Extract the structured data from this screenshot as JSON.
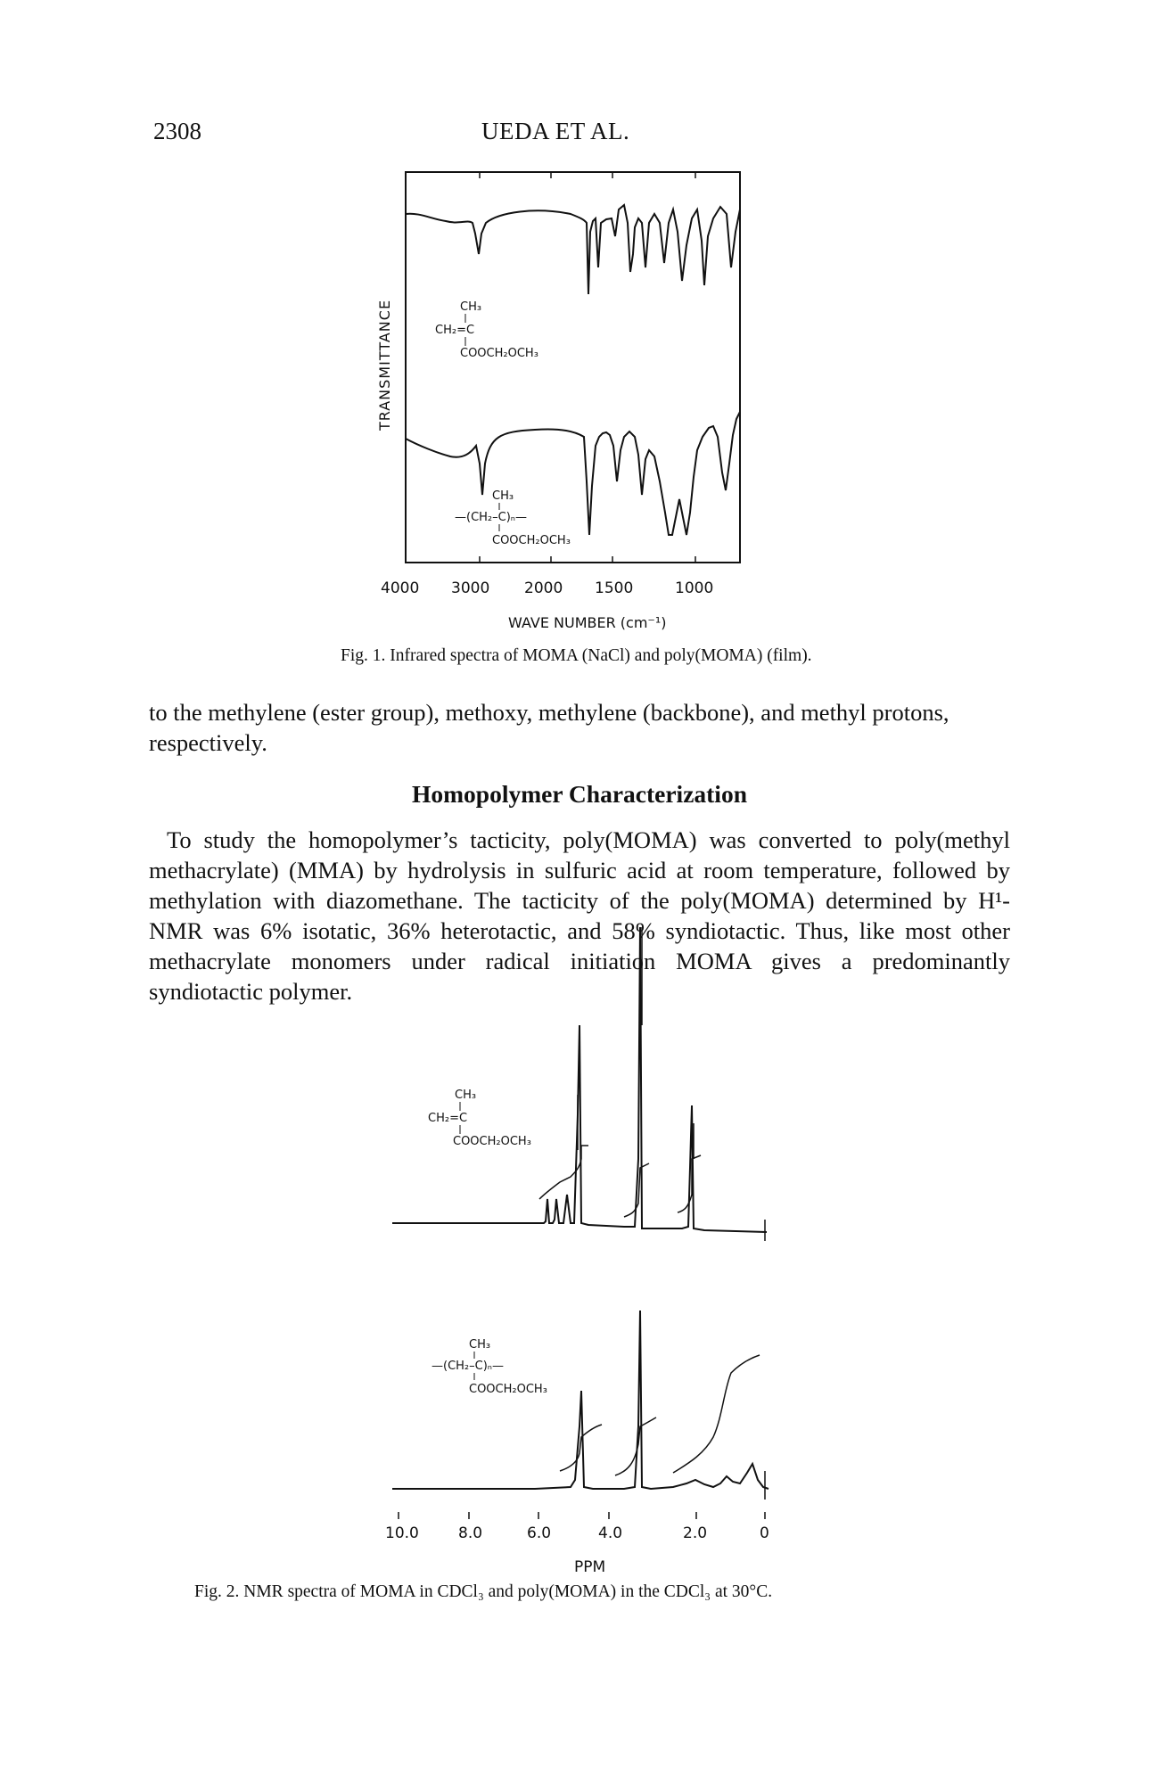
{
  "header": {
    "page_number": "2308",
    "running_title": "UEDA ET AL."
  },
  "figure1": {
    "y_axis_label": "TRANSMITTANCE",
    "x_axis_title": "WAVE NUMBER (cm⁻¹)",
    "x_tick_labels": [
      "4000",
      "3000",
      "2000",
      "1500",
      "1000"
    ],
    "structure_monomer": {
      "line1": "CH₃",
      "line2": "CH₂=C",
      "line3": "COOCH₂OCH₃"
    },
    "structure_polymer": {
      "line1": "CH₃",
      "line2": "—(CH₂–C)ₙ—",
      "line3": "COOCH₂OCH₃"
    },
    "caption": "Fig. 1.  Infrared spectra of MOMA (NaCl) and poly(MOMA) (film)."
  },
  "body": {
    "paragraph1": "to the methylene (ester group), methoxy, methylene (backbone), and methyl protons, respectively.",
    "heading": "Homopolymer Characterization",
    "paragraph2": "To study the homopolymer’s tacticity, poly(MOMA) was converted to poly(methyl methacrylate) (MMA) by hydrolysis in sulfuric acid at room temperature, followed by methylation with diazomethane. The tacticity of the poly(MOMA) determined by H¹-NMR was 6% isotatic, 36% heterotactic, and 58% syndiotactic. Thus, like most other methacrylate monomers under radical initiation MOMA gives a predominantly syndiotactic polymer."
  },
  "figure2": {
    "x_tick_labels": [
      "10.0",
      "8.0",
      "6.0",
      "4.0",
      "2.0",
      "0"
    ],
    "x_axis_title": "PPM",
    "structure_monomer": {
      "line1": "CH₃",
      "line2": "CH₂=C",
      "line3": "COOCH₂OCH₃"
    },
    "structure_polymer": {
      "line1": "CH₃",
      "line2": "—(CH₂–C)ₙ—",
      "line3": "COOCH₂OCH₃"
    },
    "caption": "Fig. 2.  NMR spectra of MOMA in CDCl₃ and poly(MOMA) in the CDCl₃ at 30°C."
  }
}
